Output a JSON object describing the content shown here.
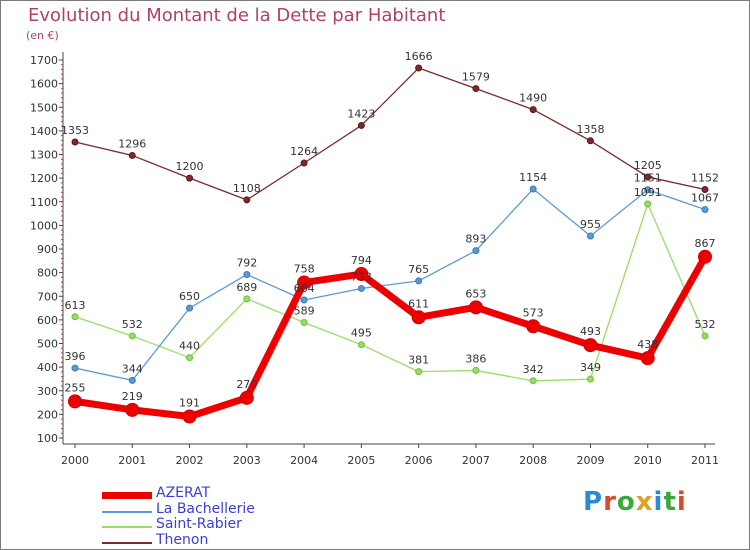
{
  "header": {
    "title": "Evolution du Montant de la Dette par Habitant",
    "unit": "(en €)"
  },
  "logo": {
    "text": "Proxiti",
    "letter_colors": [
      "#2a8ad6",
      "#d94a2a",
      "#3aa83a",
      "#e0a020",
      "#2a8ad6",
      "#3aa83a",
      "#d94a2a"
    ]
  },
  "chart_data": {
    "type": "line",
    "title": "Evolution du Montant de la Dette par Habitant",
    "subtitle": "(en €)",
    "xlabel": "",
    "ylabel": "",
    "x": [
      "2000",
      "2001",
      "2002",
      "2003",
      "2004",
      "2005",
      "2006",
      "2007",
      "2008",
      "2009",
      "2010",
      "2011"
    ],
    "ylim": [
      100,
      1700
    ],
    "yticks": [
      100,
      200,
      300,
      400,
      500,
      600,
      700,
      800,
      900,
      1000,
      1100,
      1200,
      1300,
      1400,
      1500,
      1600,
      1700
    ],
    "grid": false,
    "legend_position": "bottom-left",
    "series": [
      {
        "name": "AZERAT",
        "color": "#ee0000",
        "values": [
          255,
          219,
          191,
          270,
          758,
          794,
          611,
          653,
          573,
          493,
          438,
          867
        ]
      },
      {
        "name": "La Bachellerie",
        "color": "#5b9bd5",
        "values": [
          396,
          344,
          650,
          792,
          684,
          733,
          765,
          893,
          1154,
          955,
          1151,
          1067
        ]
      },
      {
        "name": "Saint-Rabier",
        "color": "#99dd66",
        "values": [
          613,
          532,
          440,
          689,
          589,
          495,
          381,
          386,
          342,
          349,
          1091,
          532
        ]
      },
      {
        "name": "Thenon",
        "color": "#7a2a2a",
        "values": [
          1353,
          1296,
          1200,
          1108,
          1264,
          1423,
          1666,
          1579,
          1490,
          1358,
          1205,
          1152
        ]
      }
    ]
  }
}
